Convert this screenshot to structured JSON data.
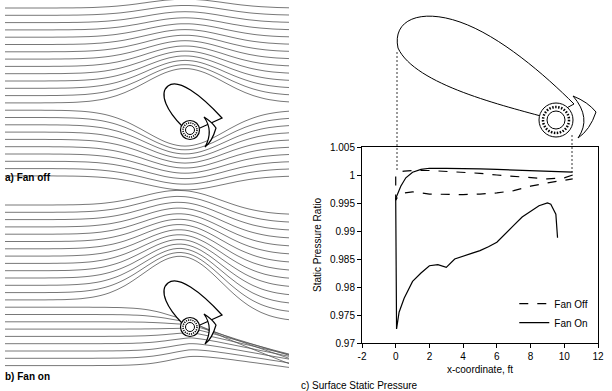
{
  "chart_data": {
    "type": "line",
    "title": "c) Surface Static Pressure",
    "x_label": "x-coordinate, ft",
    "y_label": "Static Pressure Ratio",
    "xlim": [
      -2,
      12
    ],
    "xticks": [
      -2,
      0,
      2,
      4,
      6,
      8,
      10,
      12
    ],
    "ylim": [
      0.97,
      1.005
    ],
    "yticks": [
      0.97,
      0.975,
      0.98,
      0.985,
      0.99,
      0.995,
      1,
      1.005
    ],
    "grid": false,
    "legend": "lower right",
    "series": [
      {
        "name": "Fan Off",
        "color": "#000000",
        "line_style": "dash",
        "x": [
          10.5,
          10,
          9,
          8,
          7,
          6,
          5,
          4,
          3,
          2,
          1,
          0.5,
          0.2,
          0,
          0,
          0.1,
          0.5,
          1,
          2,
          3,
          4,
          5,
          6,
          7,
          8,
          9,
          10,
          10.5
        ],
        "values": [
          1.0,
          0.9995,
          0.9993,
          0.9995,
          0.9998,
          1.0,
          1.0003,
          1.0005,
          1.0007,
          1.0008,
          1.0008,
          1.0007,
          1.0005,
          0.9998,
          0.9955,
          0.996,
          0.9968,
          0.997,
          0.9966,
          0.9965,
          0.9965,
          0.9966,
          0.9968,
          0.9972,
          0.998,
          0.9986,
          0.999,
          0.9993
        ]
      },
      {
        "name": "Fan On",
        "color": "#000000",
        "line_style": "solid",
        "x": [
          9.6,
          9.5,
          9.2,
          9,
          8.5,
          8,
          7.5,
          7,
          6.5,
          6,
          5.5,
          5,
          4.5,
          4,
          3.5,
          3,
          2.5,
          2,
          1.5,
          1,
          0.5,
          0.2,
          0.05,
          0,
          0.3,
          0.6,
          1,
          1.5,
          2,
          3,
          4,
          5,
          6,
          7,
          8,
          9,
          10,
          10.5
        ],
        "values": [
          0.9888,
          0.993,
          0.9948,
          0.995,
          0.9945,
          0.9935,
          0.9925,
          0.991,
          0.9895,
          0.988,
          0.9872,
          0.9865,
          0.986,
          0.9855,
          0.985,
          0.9835,
          0.984,
          0.9838,
          0.9825,
          0.981,
          0.978,
          0.9755,
          0.9725,
          0.9958,
          0.998,
          0.9995,
          1.0005,
          1.001,
          1.0012,
          1.0012,
          1.0012,
          1.0011,
          1.001,
          1.0009,
          1.0008,
          1.0007,
          1.0006,
          1.0005
        ]
      }
    ]
  },
  "panels": [
    {
      "caption": "a) Fan off"
    },
    {
      "caption": "b) Fan on"
    }
  ]
}
